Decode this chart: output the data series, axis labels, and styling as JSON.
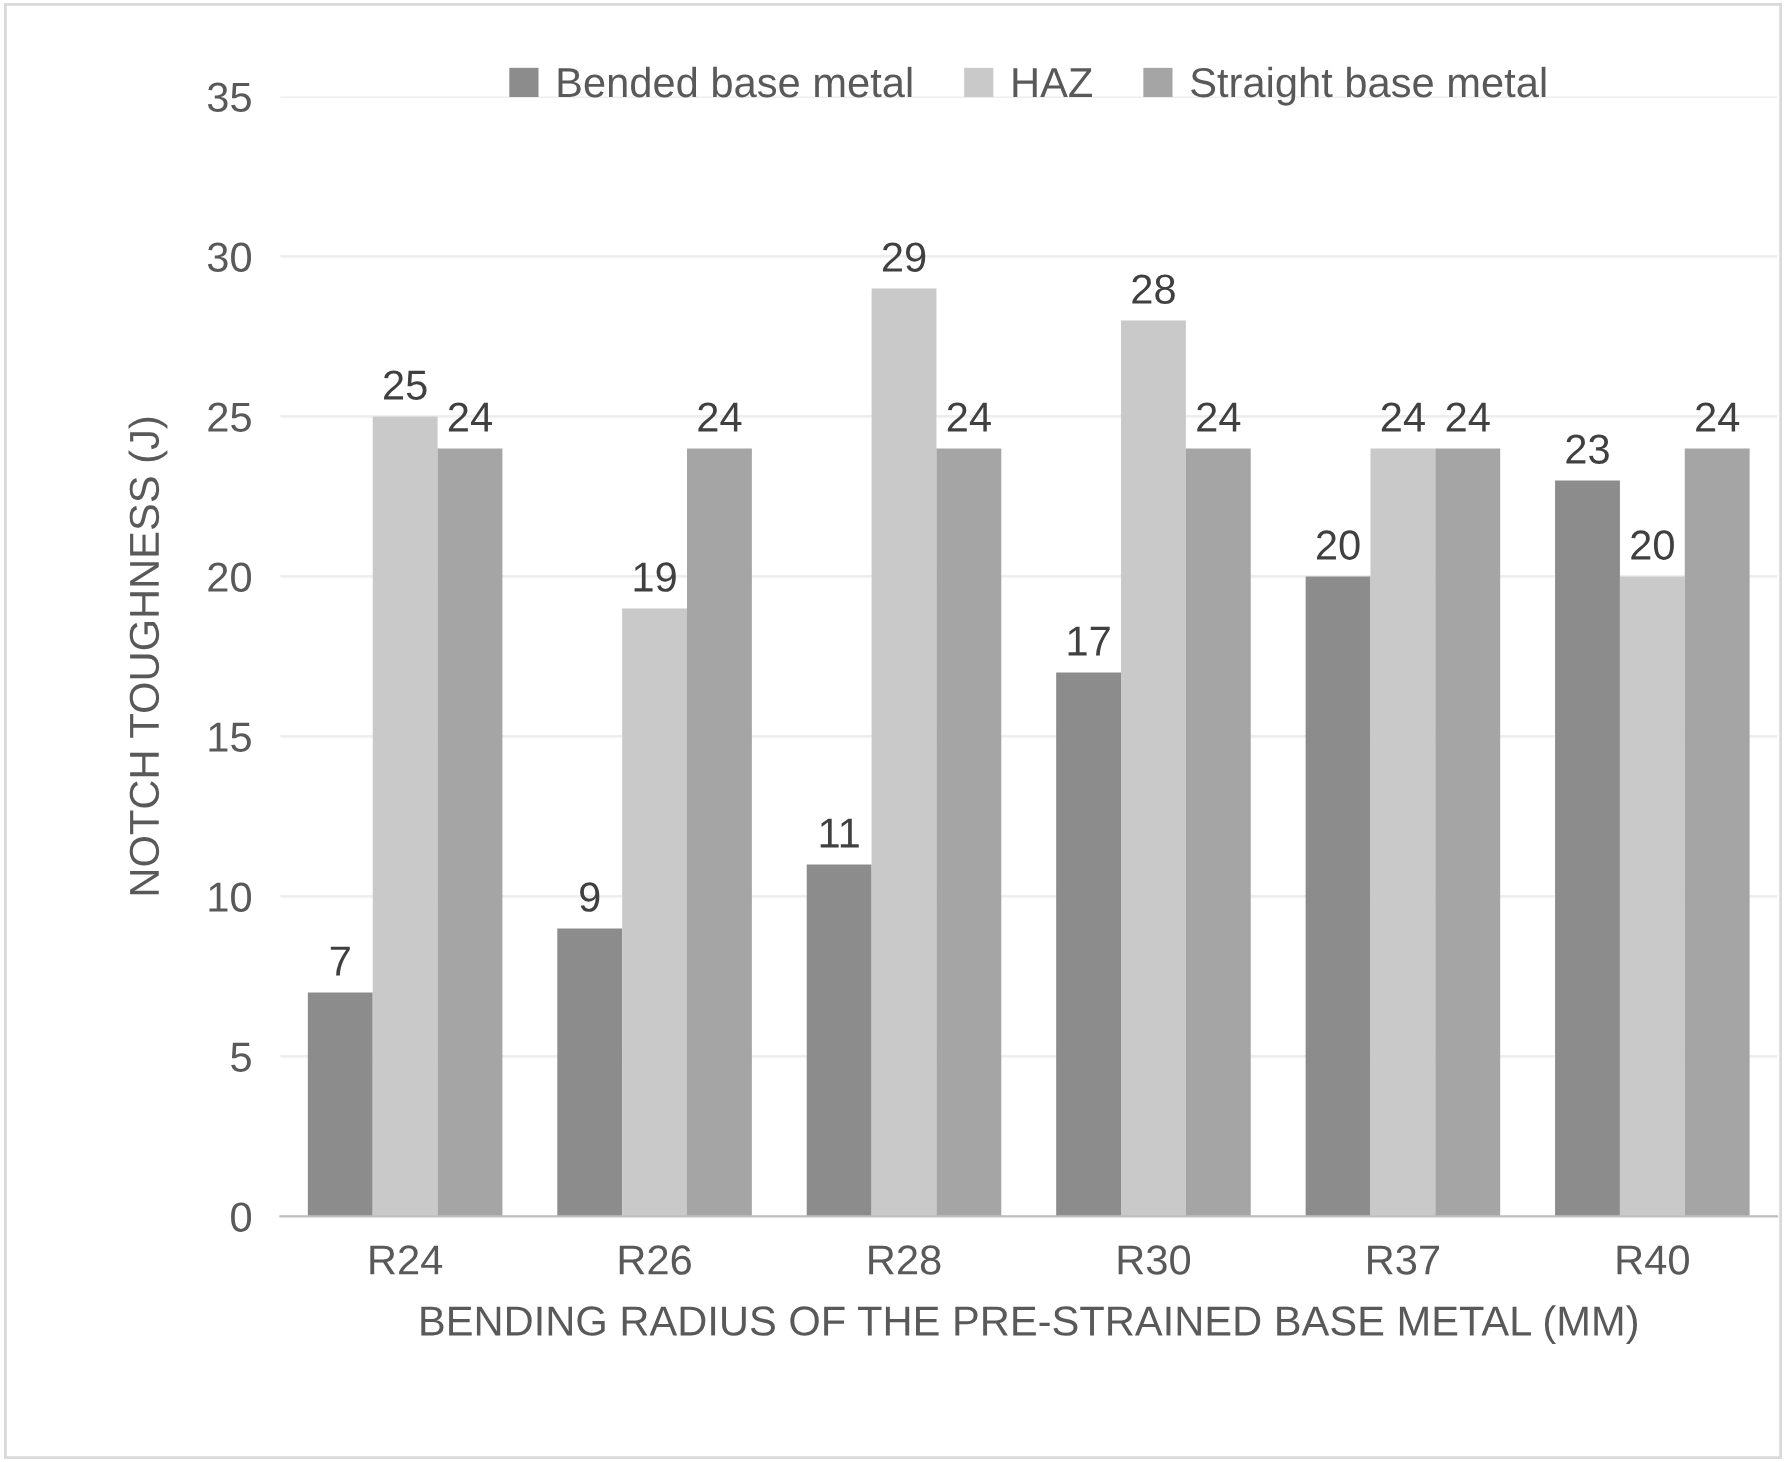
{
  "chart_data": {
    "type": "bar",
    "xlabel": "BENDING RADIUS OF THE PRE-STRAINED BASE METAL (MM)",
    "ylabel": "NOTCH TOUGHNESS (J)",
    "categories": [
      "R24",
      "R26",
      "R28",
      "R30",
      "R37",
      "R40"
    ],
    "series": [
      {
        "name": "Bended base metal",
        "color": "#8c8c8c",
        "values": [
          7,
          9,
          11,
          17,
          20,
          23
        ]
      },
      {
        "name": "HAZ",
        "color": "#c9c9c9",
        "values": [
          25,
          19,
          29,
          28,
          24,
          20
        ]
      },
      {
        "name": "Straight base metal",
        "color": "#a5a5a5",
        "values": [
          24,
          24,
          24,
          24,
          24,
          24
        ]
      }
    ],
    "ylim": [
      0,
      35
    ],
    "yticks": [
      0,
      5,
      10,
      15,
      20,
      25,
      30,
      35
    ],
    "grid": "y",
    "legend": "top",
    "data_labels": true
  }
}
